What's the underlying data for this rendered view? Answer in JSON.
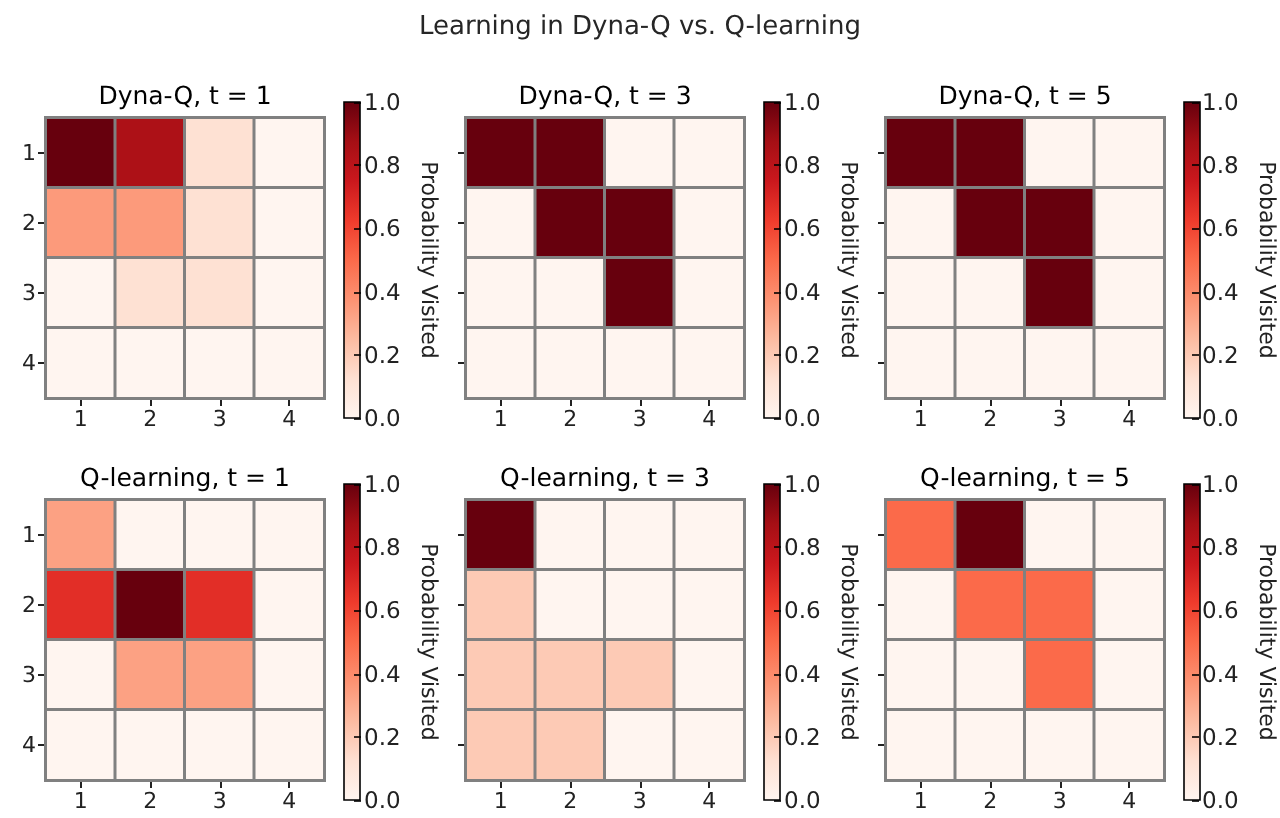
{
  "chart_data": [
    {
      "type": "heatmap",
      "title": "Dyna-Q, t = 1",
      "categories": [
        "1",
        "2",
        "3",
        "4"
      ],
      "y_categories": [
        "1",
        "2",
        "3",
        "4"
      ],
      "cells": [
        [
          1.0,
          0.85,
          0.12,
          0
        ],
        [
          0.35,
          0.35,
          0.12,
          0
        ],
        [
          0,
          0.12,
          0.12,
          0
        ],
        [
          0,
          0,
          0,
          0
        ]
      ],
      "clabel": "Probability Visited",
      "clim": [
        0,
        1
      ],
      "cticks": [
        {
          "value": 0,
          "label": "0.0"
        },
        {
          "value": 0.2,
          "label": "0.2"
        },
        {
          "value": 0.4,
          "label": "0.4"
        },
        {
          "value": 0.6,
          "label": "0.6"
        },
        {
          "value": 0.8,
          "label": "0.8"
        },
        {
          "value": 1,
          "label": "1.0"
        }
      ],
      "annotations": [
        "Learning in Dyna-Q vs. Q-learning"
      ]
    },
    {
      "type": "heatmap",
      "title": "Dyna-Q, t = 3",
      "categories": [
        "1",
        "2",
        "3",
        "4"
      ],
      "y_categories": [
        "1",
        "2",
        "3",
        "4"
      ],
      "cells": [
        [
          1,
          1,
          0,
          0
        ],
        [
          0,
          1,
          1,
          0
        ],
        [
          0,
          0,
          1,
          0
        ],
        [
          0,
          0,
          0,
          0
        ]
      ],
      "clabel": "Probability Visited",
      "clim": [
        0,
        1
      ],
      "cticks": [
        {
          "value": 0,
          "label": "0.0"
        },
        {
          "value": 0.2,
          "label": "0.2"
        },
        {
          "value": 0.4,
          "label": "0.4"
        },
        {
          "value": 0.6,
          "label": "0.6"
        },
        {
          "value": 0.8,
          "label": "0.8"
        },
        {
          "value": 1,
          "label": "1.0"
        }
      ],
      "tick_labels": "x"
    },
    {
      "type": "heatmap",
      "title": "Dyna-Q, t = 5",
      "categories": [
        "1",
        "2",
        "3",
        "4"
      ],
      "y_categories": [
        "1",
        "2",
        "3",
        "4"
      ],
      "cells": [
        [
          1,
          1,
          0,
          0
        ],
        [
          0,
          1,
          1,
          0
        ],
        [
          0,
          0,
          1,
          0
        ],
        [
          0,
          0,
          0,
          0
        ]
      ],
      "clabel": "Probability Visited",
      "clim": [
        0,
        1
      ],
      "cticks": [
        {
          "value": 0,
          "label": "0.0"
        },
        {
          "value": 0.2,
          "label": "0.2"
        },
        {
          "value": 0.4,
          "label": "0.4"
        },
        {
          "value": 0.6,
          "label": "0.6"
        },
        {
          "value": 0.8,
          "label": "0.8"
        },
        {
          "value": 1,
          "label": "1.0"
        }
      ],
      "tick_labels": "x"
    },
    {
      "type": "heatmap",
      "title": "Q-learning, t = 1",
      "categories": [
        "1",
        "2",
        "3",
        "4"
      ],
      "y_categories": [
        "1",
        "2",
        "3",
        "4"
      ],
      "cells": [
        [
          0.33,
          0,
          0,
          0
        ],
        [
          0.67,
          1,
          0.67,
          0
        ],
        [
          0,
          0.33,
          0.33,
          0
        ],
        [
          0,
          0,
          0,
          0
        ]
      ],
      "clabel": "Probability Visited",
      "clim": [
        0,
        1
      ],
      "cticks": [
        {
          "value": 0,
          "label": "0.0"
        },
        {
          "value": 0.2,
          "label": "0.2"
        },
        {
          "value": 0.4,
          "label": "0.4"
        },
        {
          "value": 0.6,
          "label": "0.6"
        },
        {
          "value": 0.8,
          "label": "0.8"
        },
        {
          "value": 1,
          "label": "1.0"
        }
      ]
    },
    {
      "type": "heatmap",
      "title": "Q-learning, t = 3",
      "categories": [
        "1",
        "2",
        "3",
        "4"
      ],
      "y_categories": [
        "1",
        "2",
        "3",
        "4"
      ],
      "cells": [
        [
          1,
          0,
          0,
          0
        ],
        [
          0.2,
          0,
          0,
          0
        ],
        [
          0.2,
          0.2,
          0.2,
          0
        ],
        [
          0.2,
          0.2,
          0,
          0
        ]
      ],
      "clabel": "Probability Visited",
      "clim": [
        0,
        1
      ],
      "cticks": [
        {
          "value": 0,
          "label": "0.0"
        },
        {
          "value": 0.2,
          "label": "0.2"
        },
        {
          "value": 0.4,
          "label": "0.4"
        },
        {
          "value": 0.6,
          "label": "0.6"
        },
        {
          "value": 0.8,
          "label": "0.8"
        },
        {
          "value": 1,
          "label": "1.0"
        }
      ],
      "tick_labels": "x"
    },
    {
      "type": "heatmap",
      "title": "Q-learning, t = 5",
      "categories": [
        "1",
        "2",
        "3",
        "4"
      ],
      "y_categories": [
        "1",
        "2",
        "3",
        "4"
      ],
      "cells": [
        [
          0.5,
          1,
          0,
          0
        ],
        [
          0,
          0.5,
          0.5,
          0
        ],
        [
          0,
          0,
          0.5,
          0
        ],
        [
          0,
          0,
          0,
          0
        ]
      ],
      "clabel": "Probability Visited",
      "clim": [
        0,
        1
      ],
      "cticks": [
        {
          "value": 0,
          "label": "0.0"
        },
        {
          "value": 0.2,
          "label": "0.2"
        },
        {
          "value": 0.4,
          "label": "0.4"
        },
        {
          "value": 0.6,
          "label": "0.6"
        },
        {
          "value": 0.8,
          "label": "0.8"
        },
        {
          "value": 1,
          "label": "1.0"
        }
      ],
      "tick_labels": "x"
    }
  ]
}
